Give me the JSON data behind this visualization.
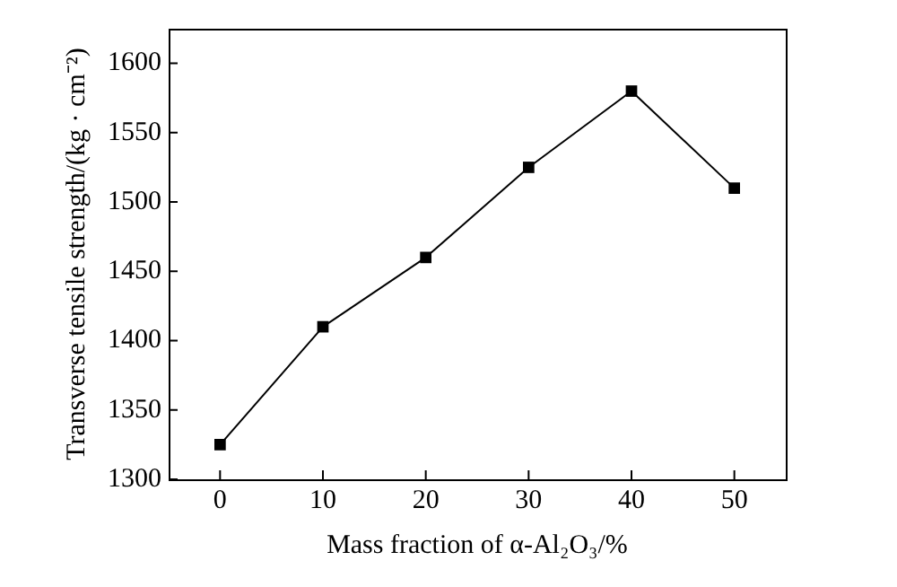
{
  "chart_data": {
    "type": "line",
    "xlabel": "Mass fraction of α-Al₂O₃/%",
    "ylabel": "Transverse tensile strength/(kg · cm⁻²)",
    "x": [
      0,
      10,
      20,
      30,
      40,
      50
    ],
    "series": [
      {
        "color": "#000000",
        "values": [
          1325,
          1410,
          1460,
          1525,
          1580,
          1510
        ]
      }
    ],
    "xlim": [
      -5,
      55
    ],
    "xticks": [
      0,
      10,
      20,
      30,
      40,
      50
    ],
    "ylim": [
      1300,
      1625
    ],
    "yticks": [
      1300,
      1350,
      1400,
      1450,
      1500,
      1550,
      1600
    ],
    "marker": "square",
    "line_style": "solid",
    "grid": false,
    "legend": false
  }
}
